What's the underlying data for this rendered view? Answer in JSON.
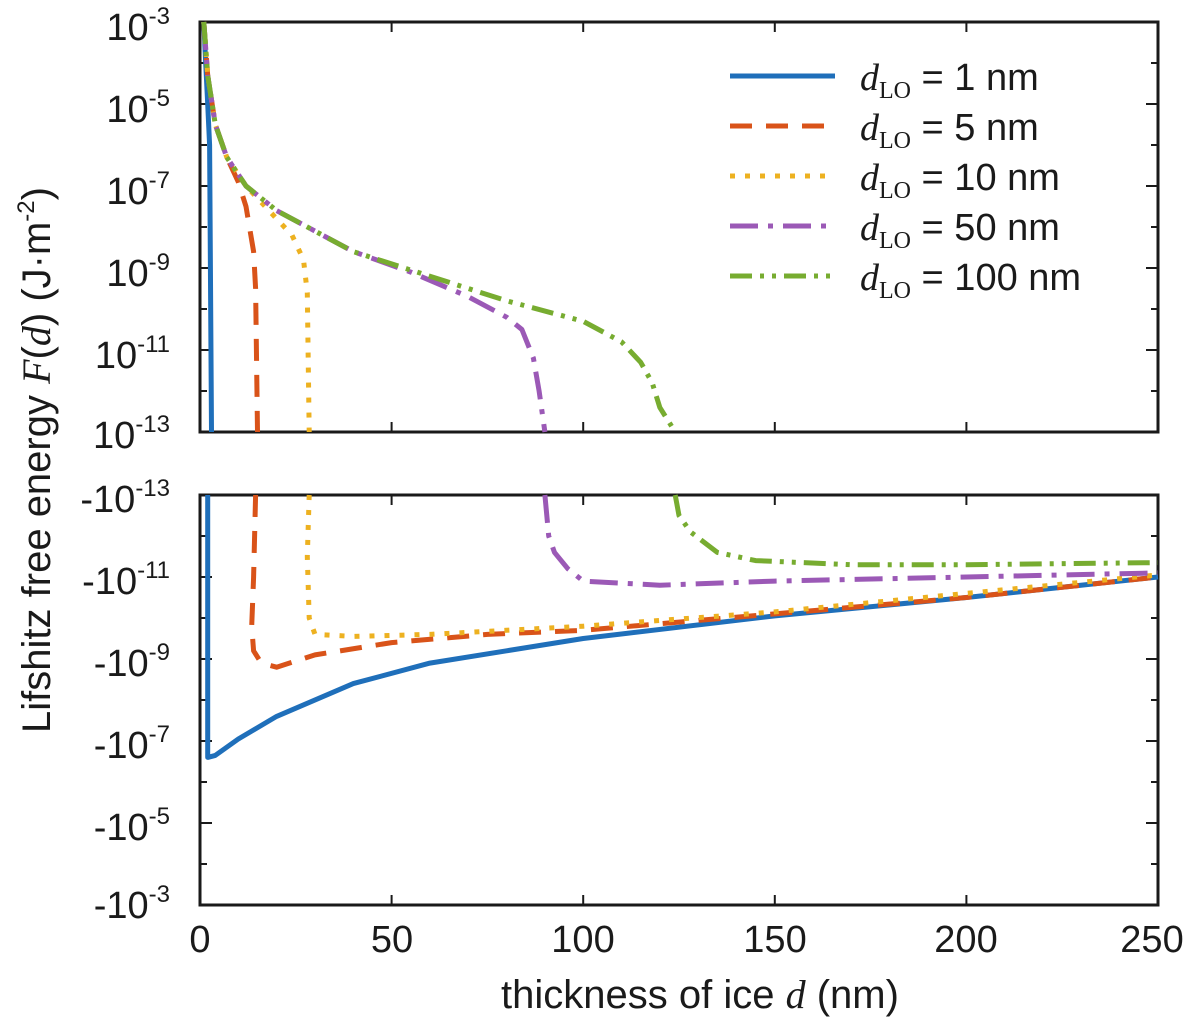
{
  "chart_data": [
    {
      "panel": "top",
      "type": "line",
      "yscale": "log",
      "xlim": [
        0,
        250
      ],
      "ylim_log10": [
        -13,
        -3
      ],
      "ytick_labels": [
        {
          "base": "10",
          "exp": "-3"
        },
        {
          "base": "10",
          "exp": "-5"
        },
        {
          "base": "10",
          "exp": "-7"
        },
        {
          "base": "10",
          "exp": "-9"
        },
        {
          "base": "10",
          "exp": "-11"
        },
        {
          "base": "10",
          "exp": "-13"
        }
      ],
      "series": [
        {
          "name": "dLO = 1 nm",
          "color": "#1f6fba",
          "points": [
            [
              1,
              -3
            ],
            [
              1.5,
              -4
            ],
            [
              2,
              -5
            ],
            [
              2.5,
              -6
            ],
            [
              3,
              -13
            ]
          ]
        },
        {
          "name": "dLO = 5 nm",
          "color": "#d95319",
          "points": [
            [
              1,
              -3
            ],
            [
              2,
              -4.3
            ],
            [
              4,
              -5.5
            ],
            [
              7,
              -6.3
            ],
            [
              10,
              -6.9
            ],
            [
              12,
              -7.5
            ],
            [
              14,
              -8.6
            ],
            [
              14.5,
              -9.5
            ],
            [
              15,
              -13
            ]
          ]
        },
        {
          "name": "dLO = 10 nm",
          "color": "#edb120",
          "points": [
            [
              1,
              -3
            ],
            [
              2,
              -4.3
            ],
            [
              4,
              -5.5
            ],
            [
              7,
              -6.3
            ],
            [
              12,
              -7
            ],
            [
              18,
              -7.6
            ],
            [
              24,
              -8.2
            ],
            [
              27,
              -8.8
            ],
            [
              28,
              -9.6
            ],
            [
              28.5,
              -13
            ]
          ]
        },
        {
          "name": "dLO = 50 nm",
          "color": "#9b59b6",
          "points": [
            [
              1,
              -3
            ],
            [
              2,
              -4.3
            ],
            [
              4,
              -5.5
            ],
            [
              7,
              -6.3
            ],
            [
              12,
              -7
            ],
            [
              20,
              -7.6
            ],
            [
              30,
              -8.1
            ],
            [
              40,
              -8.6
            ],
            [
              55,
              -9.1
            ],
            [
              70,
              -9.7
            ],
            [
              80,
              -10.2
            ],
            [
              84,
              -10.5
            ],
            [
              87,
              -11.2
            ],
            [
              88.5,
              -12
            ],
            [
              90,
              -13
            ]
          ]
        },
        {
          "name": "dLO = 100 nm",
          "color": "#77ac30",
          "points": [
            [
              1,
              -3
            ],
            [
              2,
              -4.3
            ],
            [
              4,
              -5.5
            ],
            [
              7,
              -6.3
            ],
            [
              12,
              -7
            ],
            [
              20,
              -7.6
            ],
            [
              30,
              -8.1
            ],
            [
              40,
              -8.6
            ],
            [
              60,
              -9.2
            ],
            [
              80,
              -9.8
            ],
            [
              100,
              -10.3
            ],
            [
              110,
              -10.8
            ],
            [
              115,
              -11.3
            ],
            [
              118,
              -11.8
            ],
            [
              120,
              -12.4
            ],
            [
              124,
              -13
            ]
          ]
        }
      ]
    },
    {
      "panel": "bottom",
      "type": "line",
      "yscale": "log_negative",
      "xlim": [
        0,
        250
      ],
      "ylim_log10": [
        -13,
        -3
      ],
      "ytick_labels": [
        {
          "base": "-10",
          "exp": "-13"
        },
        {
          "base": "-10",
          "exp": "-11"
        },
        {
          "base": "-10",
          "exp": "-9"
        },
        {
          "base": "-10",
          "exp": "-7"
        },
        {
          "base": "-10",
          "exp": "-5"
        },
        {
          "base": "-10",
          "exp": "-3"
        }
      ],
      "series": [
        {
          "name": "dLO = 1 nm",
          "color": "#1f6fba",
          "points": [
            [
              2,
              -13
            ],
            [
              2,
              -6.6
            ],
            [
              4,
              -6.65
            ],
            [
              10,
              -7.05
            ],
            [
              20,
              -7.6
            ],
            [
              40,
              -8.4
            ],
            [
              60,
              -8.9
            ],
            [
              80,
              -9.2
            ],
            [
              100,
              -9.5
            ],
            [
              150,
              -10.05
            ],
            [
              200,
              -10.5
            ],
            [
              250,
              -11.0
            ]
          ]
        },
        {
          "name": "dLO = 5 nm",
          "color": "#d95319",
          "points": [
            [
              14.5,
              -13
            ],
            [
              14,
              -11
            ],
            [
              13.5,
              -9.8
            ],
            [
              14,
              -9.2
            ],
            [
              16,
              -8.9
            ],
            [
              20,
              -8.8
            ],
            [
              30,
              -9.1
            ],
            [
              50,
              -9.4
            ],
            [
              75,
              -9.6
            ],
            [
              100,
              -9.7
            ],
            [
              150,
              -10.1
            ],
            [
              200,
              -10.5
            ],
            [
              250,
              -11.0
            ]
          ]
        },
        {
          "name": "dLO = 10 nm",
          "color": "#edb120",
          "points": [
            [
              28.5,
              -13
            ],
            [
              28,
              -11.5
            ],
            [
              28.5,
              -10
            ],
            [
              30,
              -9.6
            ],
            [
              40,
              -9.55
            ],
            [
              60,
              -9.6
            ],
            [
              80,
              -9.7
            ],
            [
              100,
              -9.8
            ],
            [
              150,
              -10.15
            ],
            [
              200,
              -10.6
            ],
            [
              250,
              -11.05
            ]
          ]
        },
        {
          "name": "dLO = 50 nm",
          "color": "#9b59b6",
          "points": [
            [
              90,
              -13
            ],
            [
              91,
              -12
            ],
            [
              92.5,
              -11.6
            ],
            [
              96,
              -11.2
            ],
            [
              100,
              -10.9
            ],
            [
              120,
              -10.8
            ],
            [
              150,
              -10.9
            ],
            [
              200,
              -11.0
            ],
            [
              250,
              -11.1
            ]
          ]
        },
        {
          "name": "dLO = 100 nm",
          "color": "#77ac30",
          "points": [
            [
              124,
              -13
            ],
            [
              125,
              -12.5
            ],
            [
              128,
              -12.1
            ],
            [
              135,
              -11.6
            ],
            [
              145,
              -11.4
            ],
            [
              170,
              -11.3
            ],
            [
              200,
              -11.3
            ],
            [
              250,
              -11.35
            ]
          ]
        }
      ]
    }
  ],
  "xticks": [
    "0",
    "50",
    "100",
    "150",
    "200",
    "250"
  ],
  "xlabel": {
    "prefix": "thickness of ice ",
    "var": "d",
    "suffix": " (nm)"
  },
  "ylabel": {
    "prefix": "Lifshitz free energy ",
    "var": "F",
    "paren_open": "(",
    "paren_var": "d",
    "paren_close": ")",
    "unit": " (J·m",
    "unit_exp": "-2",
    "unit_close": ")"
  },
  "legend": {
    "placement": "top-right",
    "entries": [
      {
        "var": "d",
        "sub": "LO",
        "text": " = 1 nm"
      },
      {
        "var": "d",
        "sub": "LO",
        "text": " = 5 nm"
      },
      {
        "var": "d",
        "sub": "LO",
        "text": " = 10 nm"
      },
      {
        "var": "d",
        "sub": "LO",
        "text": " = 50 nm"
      },
      {
        "var": "d",
        "sub": "LO",
        "text": " = 100 nm"
      }
    ]
  }
}
